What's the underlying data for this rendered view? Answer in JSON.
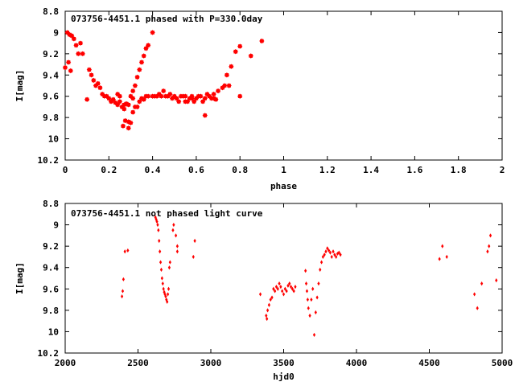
{
  "chart_data": [
    {
      "type": "scatter",
      "title": "073756-4451.1 phased with P=330.0day",
      "xlabel": "phase",
      "ylabel": "I[mag]",
      "xlim": [
        0,
        2
      ],
      "ylim": [
        8.8,
        10.2
      ],
      "y_inverted": true,
      "x_ticks": [
        0,
        0.2,
        0.4,
        0.6,
        0.8,
        1,
        1.2,
        1.4,
        1.6,
        1.8,
        2
      ],
      "y_ticks": [
        8.8,
        9,
        9.2,
        9.4,
        9.6,
        9.8,
        10,
        10.2
      ],
      "y_tick_labels": [
        "8.8",
        "9",
        "9.2",
        "9.4",
        "9.6",
        "9.8",
        "10",
        "10.2"
      ],
      "grid": false,
      "series": [
        {
          "color": "#ff0000",
          "marker": "filled-square",
          "x": [
            0.0,
            0.01,
            0.015,
            0.02,
            0.025,
            0.03,
            0.04,
            0.05,
            0.06,
            0.07,
            0.08,
            0.1,
            0.11,
            0.12,
            0.13,
            0.14,
            0.15,
            0.16,
            0.17,
            0.18,
            0.19,
            0.2,
            0.21,
            0.22,
            0.23,
            0.24,
            0.25,
            0.26,
            0.265,
            0.27,
            0.275,
            0.28,
            0.29,
            0.3,
            0.31,
            0.32,
            0.33,
            0.34,
            0.35,
            0.36,
            0.37,
            0.38,
            0.4,
            0.41,
            0.42,
            0.43,
            0.44,
            0.45,
            0.46,
            0.47,
            0.48,
            0.49,
            0.5,
            0.51,
            0.52,
            0.53,
            0.54,
            0.55,
            0.56,
            0.57,
            0.58,
            0.59,
            0.6,
            0.61,
            0.62,
            0.63,
            0.64,
            0.65,
            0.66,
            0.67,
            0.68,
            0.69,
            0.7,
            0.72,
            0.74,
            0.76,
            0.78,
            0.8,
            0.85,
            0.9,
            0.29,
            0.3,
            0.31,
            0.32,
            0.33,
            0.34,
            0.35,
            0.36,
            0.37,
            0.38,
            0.4,
            0.24,
            0.25,
            0.27,
            0.29,
            0.31,
            0.55,
            0.58,
            0.64,
            0.68,
            0.73,
            0.75,
            0.8
          ],
          "y": [
            9.33,
            9.0,
            9.28,
            9.02,
            9.36,
            9.03,
            9.06,
            9.12,
            9.2,
            9.1,
            9.2,
            9.63,
            9.35,
            9.4,
            9.45,
            9.5,
            9.48,
            9.52,
            9.58,
            9.6,
            9.6,
            9.62,
            9.65,
            9.63,
            9.66,
            9.68,
            9.65,
            9.7,
            9.88,
            9.72,
            9.83,
            9.67,
            9.9,
            9.6,
            9.75,
            9.7,
            9.7,
            9.65,
            9.62,
            9.63,
            9.6,
            9.6,
            9.6,
            9.6,
            9.6,
            9.58,
            9.6,
            9.55,
            9.6,
            9.6,
            9.58,
            9.62,
            9.6,
            9.62,
            9.65,
            9.6,
            9.6,
            9.65,
            9.65,
            9.62,
            9.6,
            9.65,
            9.62,
            9.6,
            9.6,
            9.65,
            9.78,
            9.58,
            9.6,
            9.62,
            9.58,
            9.63,
            9.55,
            9.52,
            9.4,
            9.32,
            9.18,
            9.13,
            9.22,
            9.08,
            9.84,
            9.85,
            9.55,
            9.5,
            9.42,
            9.35,
            9.28,
            9.22,
            9.15,
            9.12,
            9.0,
            9.58,
            9.6,
            9.68,
            9.68,
            9.62,
            9.6,
            9.62,
            9.62,
            9.62,
            9.5,
            9.5,
            9.6
          ]
        }
      ]
    },
    {
      "type": "scatter",
      "title": "073756-4451.1 not phased light curve",
      "xlabel": "hjd0",
      "ylabel": "I[mag]",
      "xlim": [
        2000,
        5000
      ],
      "ylim": [
        8.8,
        10.2
      ],
      "y_inverted": true,
      "x_ticks": [
        2000,
        2500,
        3000,
        3500,
        4000,
        4500,
        5000
      ],
      "y_ticks": [
        8.8,
        9,
        9.2,
        9.4,
        9.6,
        9.8,
        10,
        10.2
      ],
      "y_tick_labels": [
        "8.8",
        "9",
        "9.2",
        "9.4",
        "9.6",
        "9.8",
        "10",
        "10.2"
      ],
      "grid": false,
      "series": [
        {
          "color": "#ff0000",
          "marker": "small-diamond",
          "x": [
            2390,
            2395,
            2400,
            2410,
            2430,
            2620,
            2625,
            2630,
            2635,
            2640,
            2645,
            2650,
            2655,
            2660,
            2665,
            2670,
            2675,
            2680,
            2685,
            2690,
            2695,
            2700,
            2705,
            2710,
            2715,
            2720,
            2740,
            2745,
            2760,
            2770,
            2770,
            2880,
            2890,
            3340,
            3380,
            3385,
            3390,
            3400,
            3410,
            3420,
            3430,
            3440,
            3450,
            3460,
            3470,
            3480,
            3490,
            3500,
            3510,
            3520,
            3530,
            3540,
            3550,
            3560,
            3570,
            3580,
            3650,
            3655,
            3660,
            3665,
            3670,
            3680,
            3690,
            3700,
            3710,
            3720,
            3730,
            3740,
            3750,
            3760,
            3770,
            3780,
            3790,
            3800,
            3810,
            3820,
            3830,
            3840,
            3850,
            3860,
            3870,
            3880,
            3890,
            4570,
            4590,
            4620,
            4810,
            4830,
            4860,
            4900,
            4910,
            4920,
            4960
          ],
          "y": [
            9.67,
            9.62,
            9.51,
            9.25,
            9.24,
            8.93,
            8.95,
            8.97,
            9.0,
            9.05,
            9.15,
            9.25,
            9.35,
            9.42,
            9.5,
            9.55,
            9.6,
            9.63,
            9.65,
            9.67,
            9.7,
            9.72,
            9.65,
            9.6,
            9.4,
            9.35,
            9.05,
            9.0,
            9.1,
            9.2,
            9.25,
            9.3,
            9.15,
            9.65,
            9.85,
            9.88,
            9.8,
            9.75,
            9.7,
            9.68,
            9.6,
            9.62,
            9.58,
            9.6,
            9.55,
            9.58,
            9.62,
            9.65,
            9.6,
            9.62,
            9.57,
            9.55,
            9.58,
            9.6,
            9.62,
            9.58,
            9.43,
            9.55,
            9.62,
            9.7,
            9.78,
            9.85,
            9.7,
            9.6,
            10.03,
            9.82,
            9.68,
            9.55,
            9.42,
            9.35,
            9.3,
            9.28,
            9.25,
            9.22,
            9.24,
            9.26,
            9.3,
            9.25,
            9.28,
            9.3,
            9.27,
            9.26,
            9.28,
            9.32,
            9.2,
            9.3,
            9.65,
            9.78,
            9.55,
            9.25,
            9.2,
            9.1,
            9.52
          ]
        }
      ]
    }
  ]
}
